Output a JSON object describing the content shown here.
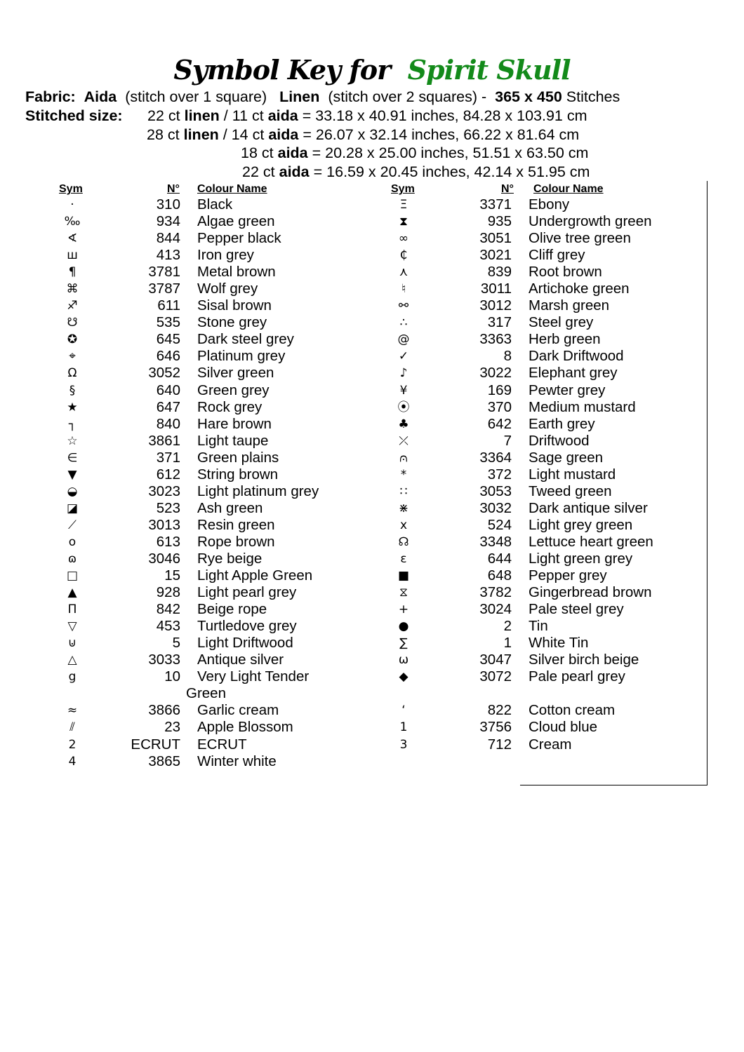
{
  "title": {
    "prefix": "Symbol Key for",
    "pattern": "Spirit Skull",
    "pattern_color": "#138a1a"
  },
  "fabric": {
    "label": "Fabric:",
    "aida": "Aida",
    "aida_note": "(stitch over 1 square)",
    "linen": "Linen",
    "linen_note": "(stitch over 2 squares) -",
    "stitches_bold": "365 x 450",
    "stitches": "Stitches"
  },
  "sizes": {
    "label": "Stitched size:",
    "lines": [
      {
        "pre": "22 ct",
        "b1": "linen",
        "mid": "/ 11 ct",
        "b2": "aida",
        "post": "= 33.18 x 40.91 inches, 84.28 x 103.91 cm"
      },
      {
        "pre": "28 ct",
        "b1": "linen",
        "mid": "/ 14 ct",
        "b2": "aida",
        "post": "= 26.07 x 32.14 inches, 66.22 x 81.64 cm"
      },
      {
        "pre": "18 ct",
        "b1": "aida",
        "mid": "",
        "b2": "",
        "post": " = 20.28 x 25.00 inches, 51.51 x 63.50 cm"
      },
      {
        "pre": "22 ct",
        "b1": "aida",
        "mid": "",
        "b2": "",
        "post": "= 16.59 x 20.45 inches, 42.14 x 51.95 cm"
      }
    ]
  },
  "headers": {
    "sym": "Sym",
    "num": "N°",
    "name": "Colour Name"
  },
  "left": [
    [
      "·",
      "310",
      "Black"
    ],
    [
      "‰",
      "934",
      "Algae green"
    ],
    [
      "∢",
      "844",
      "Pepper black"
    ],
    [
      "ш",
      "413",
      "Iron grey"
    ],
    [
      "¶",
      "3781",
      "Metal brown"
    ],
    [
      "⌘",
      "3787",
      "Wolf grey"
    ],
    [
      "♐",
      "611",
      "Sisal brown"
    ],
    [
      "☋",
      "535",
      "Stone grey"
    ],
    [
      "✪",
      "645",
      "Dark steel grey"
    ],
    [
      "⌖",
      "646",
      "Platinum grey"
    ],
    [
      "Ω",
      "3052",
      "Silver green"
    ],
    [
      "§",
      "640",
      "Green grey"
    ],
    [
      "★",
      "647",
      "Rock grey"
    ],
    [
      "┐",
      "840",
      "Hare brown"
    ],
    [
      "☆",
      "3861",
      "Light taupe"
    ],
    [
      "∈",
      "371",
      "Green plains"
    ],
    [
      "▼",
      "612",
      "String brown"
    ],
    [
      "◒",
      "3023",
      "Light platinum grey"
    ],
    [
      "◪",
      "523",
      "Ash green"
    ],
    [
      "⟋",
      "3013",
      "Resin green"
    ],
    [
      "o",
      "613",
      "Rope brown"
    ],
    [
      "ɷ",
      "3046",
      "Rye beige"
    ],
    [
      "□",
      "15",
      "Light Apple Green"
    ],
    [
      "▲",
      "928",
      "Light pearl grey"
    ],
    [
      "Π",
      "842",
      "Beige rope"
    ],
    [
      "▽",
      "453",
      "Turtledove grey"
    ],
    [
      "⊍",
      "5",
      "Light Driftwood"
    ],
    [
      "△",
      "3033",
      "Antique silver"
    ],
    [
      "g",
      "10",
      "Very Light Tender"
    ],
    [
      "",
      "",
      "Green"
    ],
    [
      "≈",
      "3866",
      "Garlic cream"
    ],
    [
      "⫽",
      "23",
      "Apple Blossom"
    ],
    [
      "2",
      "ECRUT",
      "ECRUT"
    ],
    [
      "4",
      "3865",
      "Winter white"
    ]
  ],
  "right": [
    [
      "Ξ",
      "3371",
      "Ebony"
    ],
    [
      "⧗",
      "935",
      "Undergrowth green"
    ],
    [
      "∞",
      "3051",
      "Olive tree green"
    ],
    [
      "₵",
      "3021",
      "Cliff grey"
    ],
    [
      "⋏",
      "839",
      "Root brown"
    ],
    [
      "♮",
      "3011",
      "Artichoke green"
    ],
    [
      "⚯",
      "3012",
      "Marsh green"
    ],
    [
      "∴",
      "317",
      "Steel grey"
    ],
    [
      "@",
      "3363",
      "Herb green"
    ],
    [
      "✓",
      "8",
      "Dark Driftwood"
    ],
    [
      "♪",
      "3022",
      "Elephant grey"
    ],
    [
      "¥",
      "169",
      "Pewter grey"
    ],
    [
      "⦿",
      "370",
      "Medium mustard"
    ],
    [
      "♣",
      "642",
      "Earth grey"
    ],
    [
      "⤫",
      "7",
      "Driftwood"
    ],
    [
      "⩀",
      "3364",
      "Sage green"
    ],
    [
      "*",
      "372",
      "Light mustard"
    ],
    [
      "∷",
      "3053",
      "Tweed green"
    ],
    [
      "⋇",
      "3032",
      "Dark antique silver"
    ],
    [
      "x",
      "524",
      "Light grey green"
    ],
    [
      "☊",
      "3348",
      "Lettuce heart green"
    ],
    [
      "ε",
      "644",
      "Light green grey"
    ],
    [
      "■",
      "648",
      "Pepper grey"
    ],
    [
      "⧖",
      "3782",
      "Gingerbread brown"
    ],
    [
      "+",
      "3024",
      "Pale steel grey"
    ],
    [
      "●",
      "2",
      "Tin"
    ],
    [
      "∑",
      "1",
      "White Tin"
    ],
    [
      "ω",
      "3047",
      "Silver birch beige"
    ],
    [
      "◆",
      "3072",
      "Pale pearl grey"
    ],
    [
      "",
      "",
      ""
    ],
    [
      "‘",
      "822",
      "Cotton cream"
    ],
    [
      "1",
      "3756",
      "Cloud blue"
    ],
    [
      "3",
      "712",
      "Cream"
    ]
  ]
}
